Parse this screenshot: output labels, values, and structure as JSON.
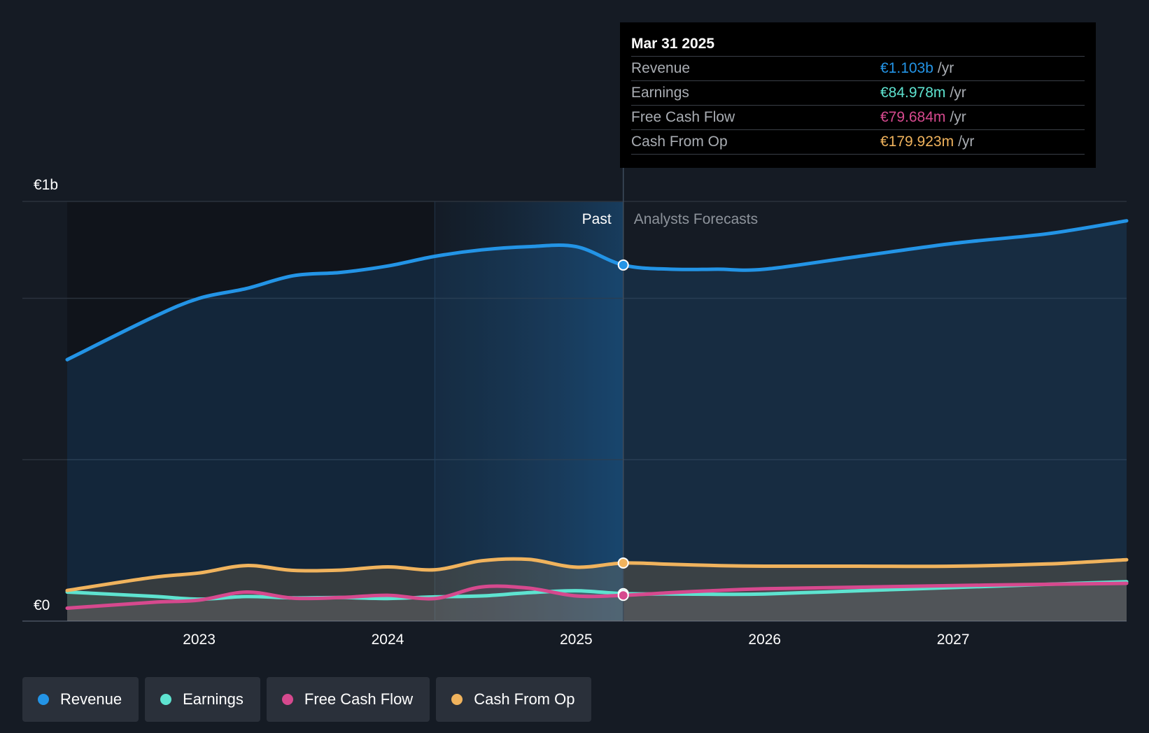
{
  "chart_data": {
    "type": "area",
    "x_range": [
      2022.3,
      2027.92
    ],
    "y_range": [
      0,
      1.3
    ],
    "y_ticks": [
      {
        "value": 1.3,
        "label": "€1b"
      },
      {
        "value": 0,
        "label": "€0"
      }
    ],
    "y_gridlines": [
      0,
      0.5,
      1.0,
      1.3
    ],
    "x_ticks": [
      {
        "value": 2023,
        "label": "2023"
      },
      {
        "value": 2024,
        "label": "2024"
      },
      {
        "value": 2025,
        "label": "2025"
      },
      {
        "value": 2026,
        "label": "2026"
      },
      {
        "value": 2027,
        "label": "2027"
      }
    ],
    "divider_x": 2025.25,
    "past_shade_start": 2024.25,
    "past_label": "Past",
    "forecast_label": "Analysts Forecasts",
    "series": [
      {
        "name": "Revenue",
        "color": "#2394e6",
        "points": [
          [
            2022.3,
            0.81
          ],
          [
            2022.75,
            0.94
          ],
          [
            2023.0,
            1.0
          ],
          [
            2023.25,
            1.03
          ],
          [
            2023.5,
            1.07
          ],
          [
            2023.75,
            1.08
          ],
          [
            2024.0,
            1.1
          ],
          [
            2024.25,
            1.13
          ],
          [
            2024.5,
            1.15
          ],
          [
            2024.75,
            1.16
          ],
          [
            2025.0,
            1.16
          ],
          [
            2025.25,
            1.103
          ],
          [
            2025.5,
            1.09
          ],
          [
            2025.75,
            1.09
          ],
          [
            2026.0,
            1.09
          ],
          [
            2026.5,
            1.13
          ],
          [
            2027.0,
            1.17
          ],
          [
            2027.5,
            1.2
          ],
          [
            2027.92,
            1.24
          ]
        ]
      },
      {
        "name": "Earnings",
        "color": "#5ee3d0",
        "points": [
          [
            2022.3,
            0.09
          ],
          [
            2022.75,
            0.077
          ],
          [
            2023.0,
            0.068
          ],
          [
            2023.25,
            0.076
          ],
          [
            2023.5,
            0.072
          ],
          [
            2023.75,
            0.073
          ],
          [
            2024.0,
            0.07
          ],
          [
            2024.25,
            0.075
          ],
          [
            2024.5,
            0.078
          ],
          [
            2024.75,
            0.088
          ],
          [
            2025.0,
            0.094
          ],
          [
            2025.25,
            0.084978
          ],
          [
            2025.5,
            0.084
          ],
          [
            2025.75,
            0.083
          ],
          [
            2026.0,
            0.084
          ],
          [
            2026.5,
            0.094
          ],
          [
            2027.0,
            0.104
          ],
          [
            2027.5,
            0.114
          ],
          [
            2027.92,
            0.122
          ]
        ]
      },
      {
        "name": "Free Cash Flow",
        "color": "#d6498e",
        "points": [
          [
            2022.3,
            0.04
          ],
          [
            2022.75,
            0.058
          ],
          [
            2023.0,
            0.065
          ],
          [
            2023.25,
            0.09
          ],
          [
            2023.5,
            0.071
          ],
          [
            2023.75,
            0.073
          ],
          [
            2024.0,
            0.08
          ],
          [
            2024.25,
            0.07
          ],
          [
            2024.5,
            0.106
          ],
          [
            2024.75,
            0.102
          ],
          [
            2025.0,
            0.078
          ],
          [
            2025.25,
            0.079684
          ],
          [
            2025.5,
            0.088
          ],
          [
            2025.75,
            0.095
          ],
          [
            2026.0,
            0.1
          ],
          [
            2026.5,
            0.105
          ],
          [
            2027.0,
            0.11
          ],
          [
            2027.5,
            0.114
          ],
          [
            2027.92,
            0.117
          ]
        ]
      },
      {
        "name": "Cash From Op",
        "color": "#f0b35d",
        "points": [
          [
            2022.3,
            0.095
          ],
          [
            2022.75,
            0.135
          ],
          [
            2023.0,
            0.149
          ],
          [
            2023.25,
            0.172
          ],
          [
            2023.5,
            0.157
          ],
          [
            2023.75,
            0.158
          ],
          [
            2024.0,
            0.168
          ],
          [
            2024.25,
            0.159
          ],
          [
            2024.5,
            0.187
          ],
          [
            2024.75,
            0.191
          ],
          [
            2025.0,
            0.167
          ],
          [
            2025.25,
            0.179923
          ],
          [
            2025.5,
            0.176
          ],
          [
            2025.75,
            0.172
          ],
          [
            2026.0,
            0.17
          ],
          [
            2026.5,
            0.17
          ],
          [
            2027.0,
            0.17
          ],
          [
            2027.5,
            0.177
          ],
          [
            2027.92,
            0.19
          ]
        ]
      }
    ],
    "highlight_x": 2025.25
  },
  "tooltip": {
    "date": "Mar 31 2025",
    "rows": [
      {
        "label": "Revenue",
        "value": "€1.103b",
        "unit": "/yr",
        "color": "#2394e6"
      },
      {
        "label": "Earnings",
        "value": "€84.978m",
        "unit": "/yr",
        "color": "#5ee3d0"
      },
      {
        "label": "Free Cash Flow",
        "value": "€79.684m",
        "unit": "/yr",
        "color": "#d6498e"
      },
      {
        "label": "Cash From Op",
        "value": "€179.923m",
        "unit": "/yr",
        "color": "#f0b35d"
      }
    ]
  },
  "legend": [
    {
      "label": "Revenue",
      "color": "#2394e6"
    },
    {
      "label": "Earnings",
      "color": "#5ee3d0"
    },
    {
      "label": "Free Cash Flow",
      "color": "#d6498e"
    },
    {
      "label": "Cash From Op",
      "color": "#f0b35d"
    }
  ]
}
